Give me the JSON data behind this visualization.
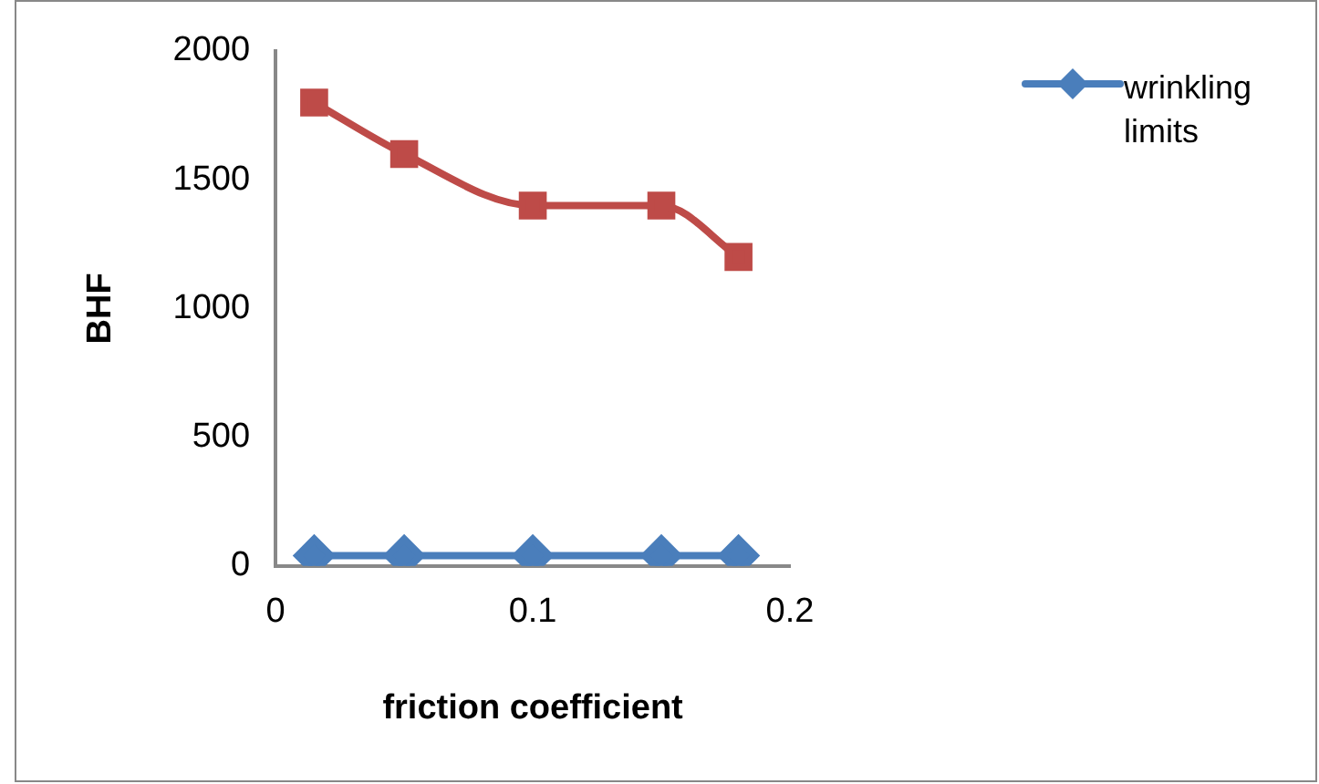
{
  "chart_data": {
    "type": "line",
    "xlabel": "friction coefficient",
    "ylabel": "BHF",
    "x": [
      0.015,
      0.05,
      0.1,
      0.15,
      0.18
    ],
    "xlim": [
      0,
      0.2
    ],
    "xticks": [
      0,
      0.1,
      0.2
    ],
    "ylim": [
      0,
      2000
    ],
    "yticks": [
      0,
      500,
      1000,
      1500,
      2000
    ],
    "grid": false,
    "legend": "right",
    "series": [
      {
        "name": "wrinkling limits",
        "color": "#4a7ebb",
        "marker": "diamond",
        "values": [
          40,
          40,
          40,
          40,
          40
        ]
      },
      {
        "color": "#be4b48",
        "marker": "square",
        "values": [
          1800,
          1600,
          1400,
          1400,
          1200
        ]
      }
    ]
  }
}
